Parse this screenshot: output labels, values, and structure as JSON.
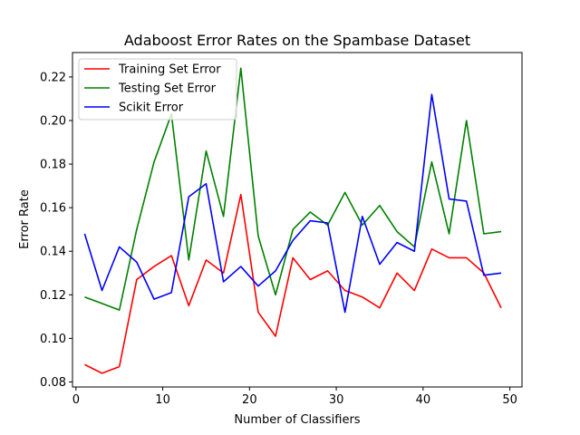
{
  "chart_data": {
    "type": "line",
    "title": "Adaboost Error Rates on the Spambase Dataset",
    "xlabel": "Number of Classifiers",
    "ylabel": "Error Rate",
    "xlim": [
      -0.4,
      51.4
    ],
    "ylim": [
      0.0777,
      0.2312
    ],
    "xticks": [
      0,
      10,
      20,
      30,
      40,
      50
    ],
    "yticks": [
      0.08,
      0.1,
      0.12,
      0.14,
      0.16,
      0.18,
      0.2,
      0.22
    ],
    "ytick_labels": [
      "0.08",
      "0.10",
      "0.12",
      "0.14",
      "0.16",
      "0.18",
      "0.20",
      "0.22"
    ],
    "grid": false,
    "legend_position": "top-left",
    "x": [
      1,
      3,
      5,
      7,
      9,
      11,
      13,
      15,
      17,
      19,
      21,
      23,
      25,
      27,
      29,
      31,
      33,
      35,
      37,
      39,
      41,
      43,
      45,
      47,
      49
    ],
    "series": [
      {
        "name": "Training Set Error",
        "color": "#ff0000",
        "values": [
          0.088,
          0.084,
          0.087,
          0.127,
          0.133,
          0.138,
          0.115,
          0.136,
          0.13,
          0.166,
          0.112,
          0.101,
          0.137,
          0.127,
          0.131,
          0.122,
          0.119,
          0.114,
          0.13,
          0.122,
          0.141,
          0.137,
          0.137,
          0.13,
          0.114
        ]
      },
      {
        "name": "Testing Set Error",
        "color": "#008000",
        "values": [
          0.119,
          0.116,
          0.113,
          0.15,
          0.181,
          0.203,
          0.136,
          0.186,
          0.156,
          0.224,
          0.147,
          0.12,
          0.15,
          0.158,
          0.152,
          0.167,
          0.152,
          0.161,
          0.149,
          0.142,
          0.181,
          0.148,
          0.2,
          0.148,
          0.149
        ]
      },
      {
        "name": "Scikit Error",
        "color": "#0000ff",
        "values": [
          0.148,
          0.122,
          0.142,
          0.135,
          0.118,
          0.121,
          0.165,
          0.171,
          0.126,
          0.133,
          0.124,
          0.131,
          0.145,
          0.154,
          0.153,
          0.112,
          0.156,
          0.134,
          0.144,
          0.14,
          0.212,
          0.164,
          0.163,
          0.129,
          0.13
        ]
      }
    ]
  }
}
